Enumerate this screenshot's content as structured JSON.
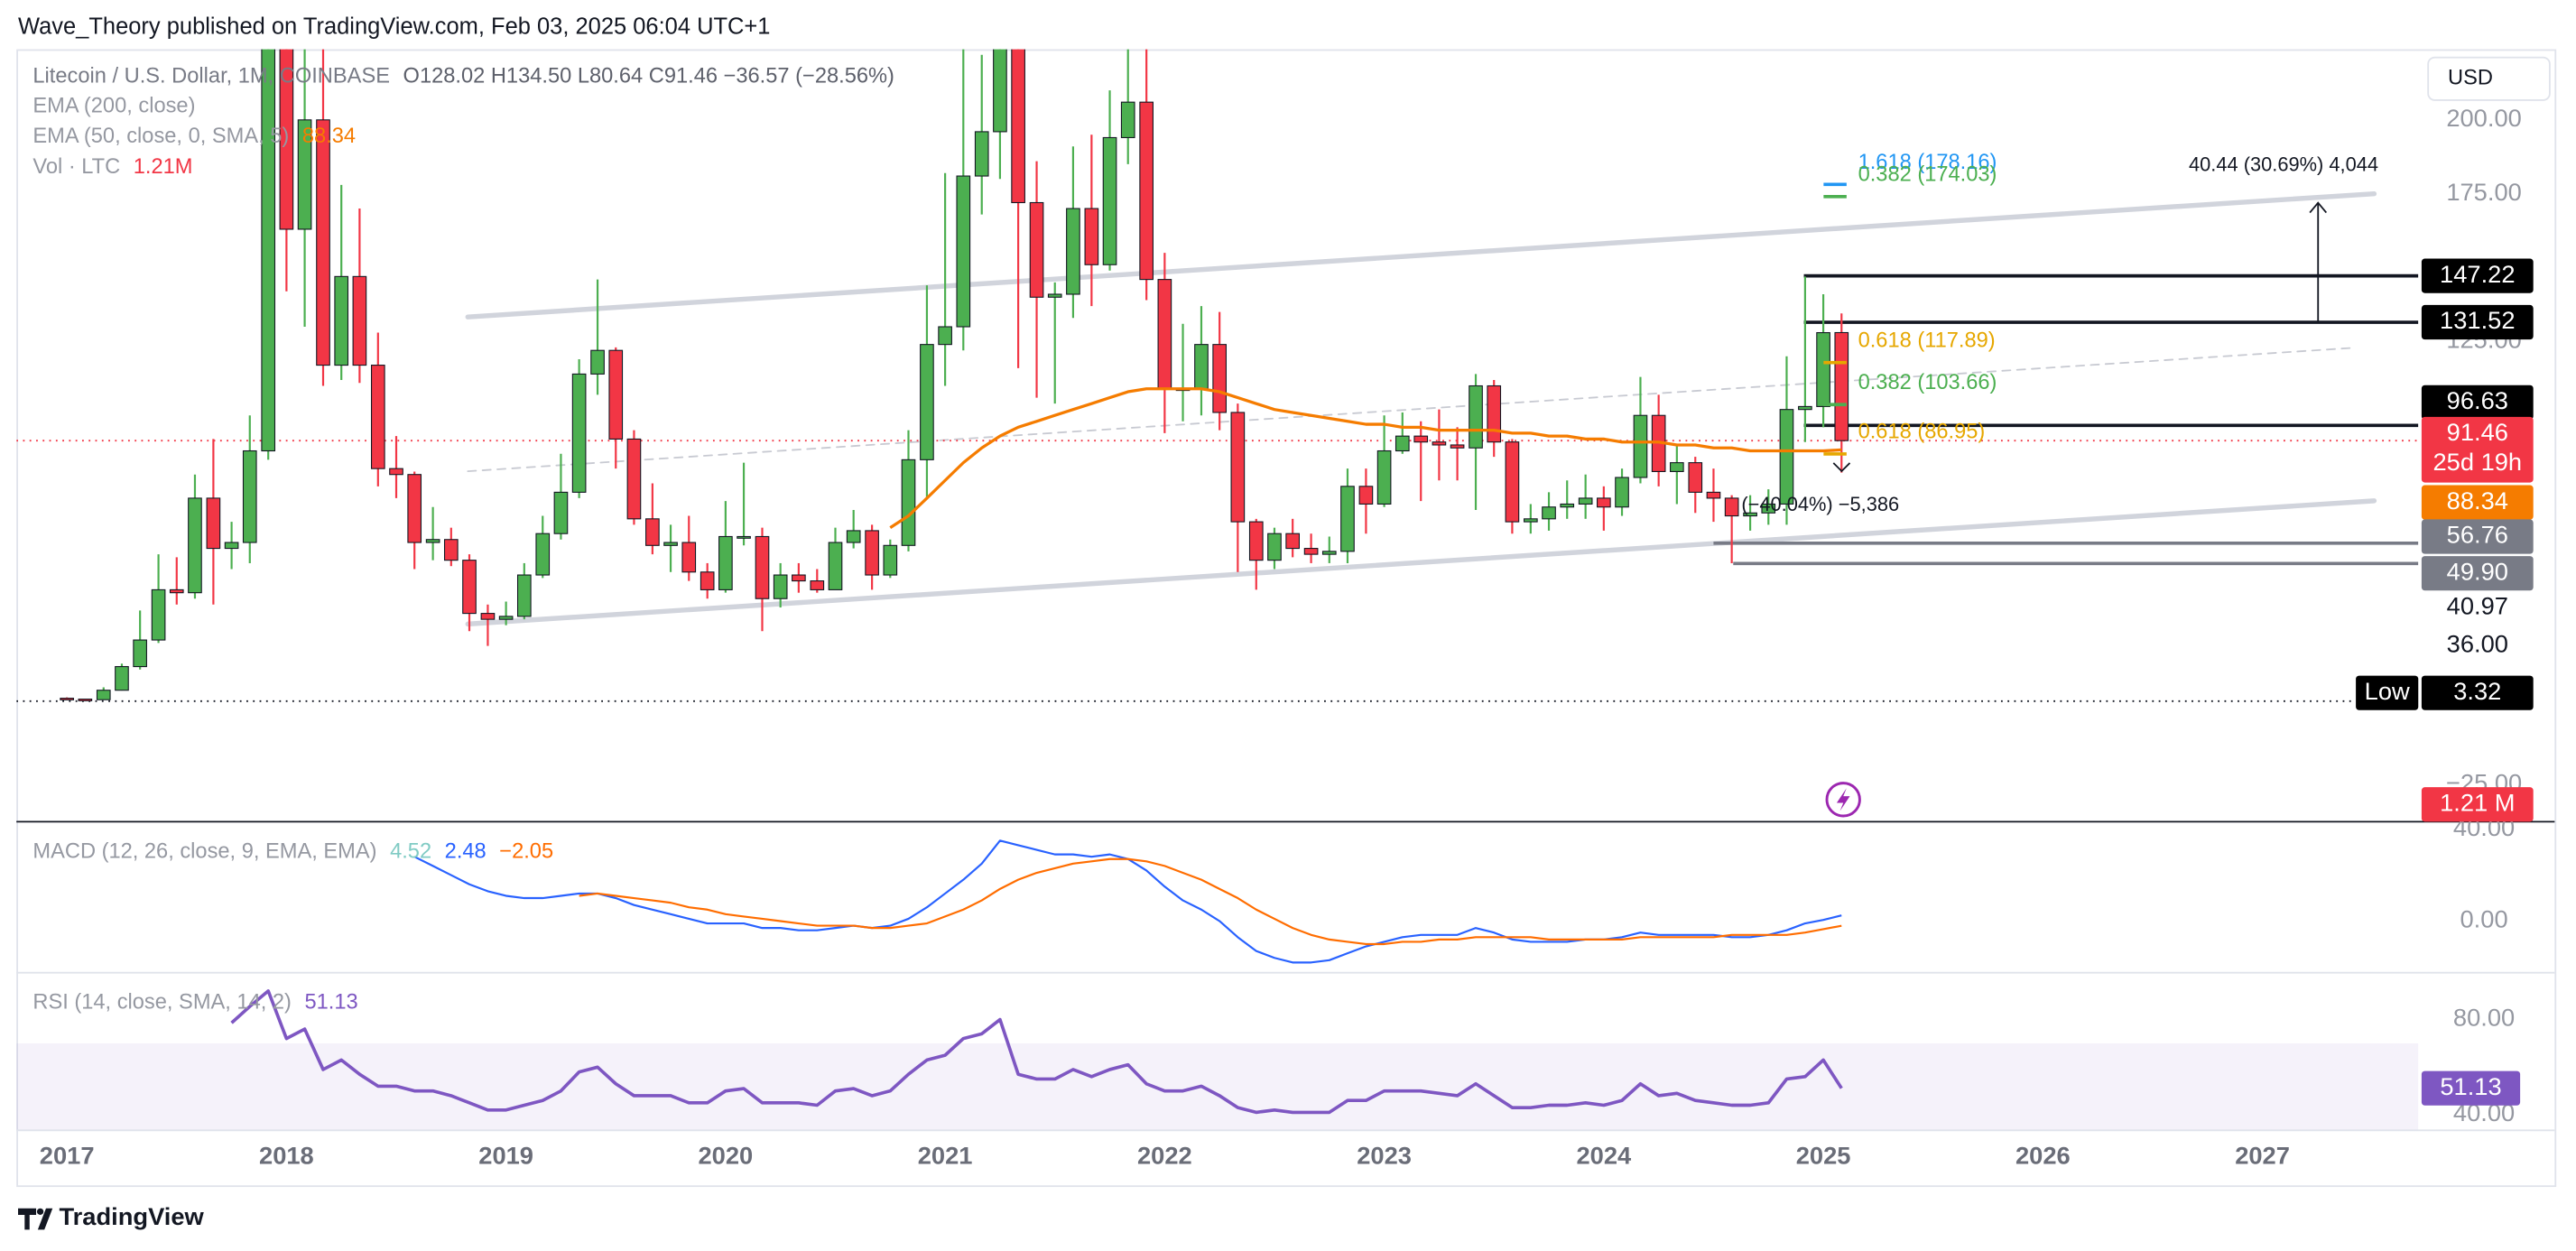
{
  "header": {
    "byline": "Wave_Theory published on TradingView.com, Feb 03, 2025 06:04 UTC+1",
    "brand": "TradingView",
    "currency": "USD"
  },
  "chart_data": [
    {
      "type": "candlestick",
      "symbol": "Litecoin / U.S. Dollar, 1M, COINBASE",
      "ohlc_text": "O128.02  H134.50  L80.64  C91.46  −36.57 (−28.56%)",
      "legend": [
        {
          "label": "EMA (200, close)"
        },
        {
          "label": "EMA (50, close, 0, SMA, 5)",
          "value_label": "88.34",
          "color": "#f57c00"
        },
        {
          "label": "Vol · LTC",
          "value_label": "1.21M",
          "color": "#f23645"
        }
      ],
      "up_color": "#4caf50",
      "down_color": "#f23645",
      "x": [
        2017,
        2017.083,
        2017.167,
        2017.25,
        2017.333,
        2017.417,
        2017.5,
        2017.583,
        2017.667,
        2017.75,
        2017.833,
        2017.917,
        2018,
        2018.083,
        2018.167,
        2018.25,
        2018.333,
        2018.417,
        2018.5,
        2018.583,
        2018.667,
        2018.75,
        2018.833,
        2018.917,
        2019,
        2019.083,
        2019.167,
        2019.25,
        2019.333,
        2019.417,
        2019.5,
        2019.583,
        2019.667,
        2019.75,
        2019.833,
        2019.917,
        2020,
        2020.083,
        2020.167,
        2020.25,
        2020.333,
        2020.417,
        2020.5,
        2020.583,
        2020.667,
        2020.75,
        2020.833,
        2020.917,
        2021,
        2021.083,
        2021.167,
        2021.25,
        2021.333,
        2021.417,
        2021.5,
        2021.583,
        2021.667,
        2021.75,
        2021.833,
        2021.917,
        2022,
        2022.083,
        2022.167,
        2022.25,
        2022.333,
        2022.417,
        2022.5,
        2022.583,
        2022.667,
        2022.75,
        2022.833,
        2022.917,
        2023,
        2023.083,
        2023.167,
        2023.25,
        2023.333,
        2023.417,
        2023.5,
        2023.583,
        2023.667,
        2023.75,
        2023.833,
        2023.917,
        2024,
        2024.083,
        2024.167,
        2024.25,
        2024.333,
        2024.417,
        2024.5,
        2024.583,
        2024.667,
        2024.75,
        2024.833,
        2024.917,
        2025,
        2025.083
      ],
      "open": [
        4.3,
        4.0,
        3.8,
        7.0,
        15,
        24,
        41,
        40,
        72,
        55,
        57,
        88,
        232,
        163,
        200,
        117,
        147,
        117,
        82,
        80,
        57,
        58,
        51,
        33,
        31,
        32,
        46,
        60,
        74,
        114,
        122,
        92,
        65,
        56,
        57,
        47,
        41,
        59,
        59,
        38,
        46,
        44,
        41,
        57,
        61,
        46,
        56,
        85,
        124,
        130,
        181,
        196,
        273,
        172,
        140,
        141,
        170,
        151,
        194,
        206,
        146,
        109,
        109,
        124,
        101,
        64,
        51,
        60,
        55,
        53,
        54,
        76,
        70,
        88,
        93,
        91,
        90,
        89,
        110,
        91,
        64,
        65,
        69,
        70,
        72,
        69,
        79,
        100,
        81,
        84,
        74,
        72,
        66,
        67,
        70,
        102,
        103,
        128.02
      ],
      "high": [
        4.6,
        4.1,
        8.0,
        16,
        34,
        53,
        52,
        80,
        92,
        64,
        100,
        375,
        255,
        240,
        232,
        178,
        170,
        128,
        93,
        81,
        69,
        62,
        53,
        36,
        37,
        50,
        66,
        87,
        119,
        146,
        123,
        95,
        77,
        63,
        66,
        50,
        71,
        84,
        62,
        50,
        50,
        48,
        62,
        68,
        63,
        58,
        95,
        144,
        182,
        246,
        222,
        412,
        379,
        186,
        145,
        191,
        195,
        210,
        297,
        240,
        155,
        131,
        137,
        135,
        104,
        65,
        62,
        65,
        60,
        59,
        82,
        82,
        100,
        101,
        98,
        102,
        96,
        114,
        112,
        92,
        70,
        74,
        78,
        80,
        76,
        82,
        113,
        107,
        90,
        86,
        82,
        73,
        73,
        75,
        120,
        147,
        141,
        134.5
      ],
      "low": [
        3.7,
        3.6,
        3.7,
        6.9,
        14,
        23,
        36,
        38,
        36,
        48,
        50,
        85,
        142,
        130,
        110,
        112,
        111,
        76,
        72,
        48,
        51,
        49,
        27,
        22,
        29,
        31,
        45,
        58,
        72,
        107,
        82,
        63,
        53,
        47,
        44,
        38,
        40,
        56,
        27,
        35,
        40,
        40,
        41,
        55,
        41,
        45,
        54,
        72,
        110,
        122,
        168,
        180,
        116,
        106,
        104,
        133,
        137,
        149,
        185,
        139,
        94,
        98,
        100,
        95,
        47,
        41,
        48,
        52,
        50,
        50,
        50,
        60,
        69,
        87,
        71,
        78,
        78,
        68,
        86,
        60,
        60,
        61,
        65,
        65,
        61,
        66,
        77,
        76,
        70,
        67,
        64,
        50,
        61,
        63,
        63,
        91,
        96,
        80.64
      ],
      "close": [
        4.0,
        3.8,
        7.0,
        15,
        24,
        41,
        40,
        72,
        55,
        57,
        88,
        232,
        163,
        200,
        117,
        147,
        117,
        82,
        80,
        57,
        58,
        51,
        33,
        31,
        32,
        46,
        60,
        74,
        114,
        122,
        92,
        65,
        56,
        57,
        47,
        41,
        59,
        59,
        38,
        46,
        44,
        41,
        57,
        61,
        46,
        56,
        85,
        124,
        130,
        181,
        196,
        273,
        172,
        140,
        141,
        170,
        151,
        194,
        206,
        146,
        109,
        109,
        124,
        101,
        64,
        51,
        60,
        55,
        53,
        54,
        76,
        70,
        88,
        93,
        91,
        90,
        89,
        110,
        91,
        64,
        65,
        69,
        70,
        72,
        69,
        79,
        100,
        81,
        84,
        74,
        72,
        66,
        67,
        70,
        102,
        103,
        128,
        91.46
      ],
      "ema": {
        "color": "#f57c00",
        "values": [
          null,
          null,
          null,
          null,
          null,
          null,
          null,
          null,
          null,
          null,
          null,
          null,
          null,
          null,
          null,
          null,
          null,
          null,
          null,
          null,
          null,
          null,
          null,
          null,
          null,
          null,
          null,
          null,
          null,
          null,
          null,
          null,
          null,
          null,
          null,
          null,
          null,
          null,
          null,
          null,
          null,
          null,
          null,
          null,
          null,
          62,
          66,
          72,
          78,
          84,
          89,
          93,
          96,
          98,
          100,
          102,
          104,
          106,
          108,
          109,
          109,
          109,
          109,
          108,
          106,
          104,
          102,
          101,
          100,
          99,
          98,
          97,
          97,
          96,
          96,
          95,
          95,
          95,
          95,
          94,
          94,
          93,
          93,
          92,
          92,
          91,
          91,
          91,
          90,
          90,
          89,
          89,
          88,
          88,
          88,
          88,
          88,
          88.34
        ]
      },
      "xlim": [
        2016.77,
        2027.71
      ],
      "xticks": [
        2017,
        2018,
        2019,
        2020,
        2021,
        2022,
        2023,
        2024,
        2025,
        2026,
        2027
      ],
      "ylim": [
        -37.2,
        223.9
      ],
      "yticks": [
        {
          "value": 200,
          "label": "200.00"
        },
        {
          "value": 175,
          "label": "175.00"
        },
        {
          "value": 125,
          "label": "125.00"
        },
        {
          "value": -25,
          "label": "−25.00"
        }
      ],
      "trendlines": [
        {
          "x": [
            2018.826,
            2027.509
          ],
          "y": [
            133.3,
            175
          ],
          "color": "#d1d4dc",
          "dashed": false
        },
        {
          "x": [
            2018.826,
            2027.509
          ],
          "y": [
            29.4,
            71.1
          ],
          "color": "#d1d4dc",
          "dashed": false
        },
        {
          "x": [
            2018.826,
            2027.4
          ],
          "y": [
            81.1,
            122.8
          ],
          "color": "#c8cad2",
          "dashed": true
        }
      ],
      "fib_levels": [
        {
          "label": "1.618 (178.16)",
          "value": 178.16,
          "color": "#2196f3"
        },
        {
          "label": "0.382 (174.03)",
          "value": 174.03,
          "color": "#4caf50"
        },
        {
          "label": "0.618 (117.89)",
          "value": 117.89,
          "color": "#e6a700"
        },
        {
          "label": "0.382 (103.66)",
          "value": 103.66,
          "color": "#4caf50"
        },
        {
          "label": "0.618 (86.95)",
          "value": 86.95,
          "color": "#e6a700"
        }
      ],
      "measures": [
        {
          "label": "40.44 (30.69%) 4,044",
          "from": 131.52,
          "value": 40.44
        },
        {
          "label": "(−40.04%) −5,386"
        }
      ],
      "price_labels": [
        {
          "value": 147.22,
          "label": "147.22",
          "bg": "#000000"
        },
        {
          "value": 131.52,
          "label": "131.52",
          "bg": "#000000"
        },
        {
          "value": 96.63,
          "label": "96.63",
          "bg": "#000000"
        },
        {
          "value": 91.46,
          "label": "91.46",
          "bg": "#f23645",
          "sub": "25d 19h"
        },
        {
          "value": 88.34,
          "label": "88.34",
          "bg": "#f57c00"
        },
        {
          "value": 56.76,
          "label": "56.76",
          "bg": "#787b86"
        },
        {
          "value": 49.9,
          "label": "49.90",
          "bg": "#787b86"
        },
        {
          "value": 40.97,
          "label": "40.97"
        },
        {
          "value": 36,
          "label": "36.00"
        },
        {
          "value": 3.32,
          "label": "3.32",
          "bg": "#000000",
          "tag": "Low"
        }
      ],
      "volume_label": {
        "label": "1.21 M",
        "color": "#f23645"
      }
    },
    {
      "type": "line",
      "legend": "MACD (12, 26, close, 9, EMA, EMA)",
      "legend_values": [
        {
          "label": "4.52",
          "color": "#80cbc4"
        },
        {
          "label": "2.48",
          "color": "#2962ff"
        },
        {
          "label": "−2.05",
          "color": "#ff6d00"
        }
      ],
      "series": [
        {
          "color": "#2962ff",
          "values": [
            null,
            null,
            null,
            null,
            null,
            null,
            null,
            null,
            null,
            null,
            null,
            null,
            null,
            null,
            null,
            null,
            null,
            null,
            null,
            28,
            24,
            20,
            16,
            13,
            11,
            10,
            10,
            11,
            12,
            12,
            10,
            7,
            5,
            3,
            1,
            -1,
            -1,
            -1,
            -3,
            -3,
            -4,
            -4,
            -3,
            -2,
            -3,
            -2,
            1,
            6,
            12,
            18,
            25,
            35,
            33,
            31,
            29,
            29,
            28,
            29,
            27,
            22,
            15,
            9,
            5,
            0,
            -7,
            -13,
            -16,
            -18,
            -18,
            -17,
            -14,
            -11,
            -9,
            -7,
            -6,
            -6,
            -6,
            -3,
            -5,
            -8,
            -9,
            -9,
            -9,
            -8,
            -8,
            -7,
            -5,
            -6,
            -6,
            -6,
            -6,
            -7,
            -7,
            -6,
            -4,
            -1,
            0.5,
            2.48
          ]
        },
        {
          "color": "#ff6d00",
          "values": [
            null,
            null,
            null,
            null,
            null,
            null,
            null,
            null,
            null,
            null,
            null,
            null,
            null,
            null,
            null,
            null,
            null,
            null,
            null,
            null,
            null,
            null,
            null,
            null,
            null,
            null,
            null,
            null,
            11,
            12,
            11,
            10,
            9,
            8,
            6,
            5,
            3,
            2,
            1,
            0,
            -1,
            -2,
            -2,
            -2,
            -3,
            -3,
            -2,
            -1,
            2,
            5,
            9,
            14,
            18,
            21,
            23,
            25,
            26,
            27,
            27,
            26,
            24,
            21,
            18,
            14,
            10,
            5,
            1,
            -3,
            -6,
            -8,
            -9,
            -10,
            -10,
            -9,
            -9,
            -8,
            -8,
            -7,
            -7,
            -7,
            -7,
            -8,
            -8,
            -8,
            -8,
            -8,
            -7,
            -7,
            -7,
            -7,
            -7,
            -6,
            -6,
            -6,
            -6,
            -5,
            -3.5,
            -2.05
          ]
        }
      ],
      "ylim": [
        -22.1,
        43.6
      ],
      "yticks": [
        {
          "value": 40,
          "label": "40.00"
        },
        {
          "value": 0,
          "label": "0.00"
        }
      ]
    },
    {
      "type": "line",
      "legend": "RSI (14, close, SMA, 14, 2)",
      "legend_value": "51.13",
      "color": "#7e57c2",
      "band": [
        30,
        70
      ],
      "values": [
        null,
        null,
        null,
        null,
        null,
        null,
        null,
        null,
        null,
        78.6,
        85.5,
        92,
        72,
        76,
        59,
        63,
        57,
        52,
        52,
        50,
        50,
        48,
        45,
        42,
        42,
        44,
        46,
        50,
        58,
        60,
        53,
        48,
        48,
        48,
        45,
        45,
        50,
        51,
        45,
        45,
        45,
        44,
        50,
        51,
        48,
        50,
        57,
        63,
        65,
        72,
        74,
        80,
        57,
        55,
        55,
        59,
        56,
        59,
        61,
        53,
        50,
        50,
        52,
        48,
        43,
        41,
        42,
        41,
        41,
        41,
        46,
        46,
        50,
        50,
        50,
        49,
        48,
        53,
        48,
        43,
        43,
        44,
        44,
        45,
        44,
        46,
        53,
        48,
        49,
        46,
        45,
        44,
        44,
        45,
        55,
        56,
        63,
        51.13
      ],
      "ylim": [
        33.8,
        100
      ],
      "yticks": [
        {
          "value": 80,
          "label": "80.00"
        },
        {
          "value": 40,
          "label": "40.00"
        }
      ]
    }
  ]
}
